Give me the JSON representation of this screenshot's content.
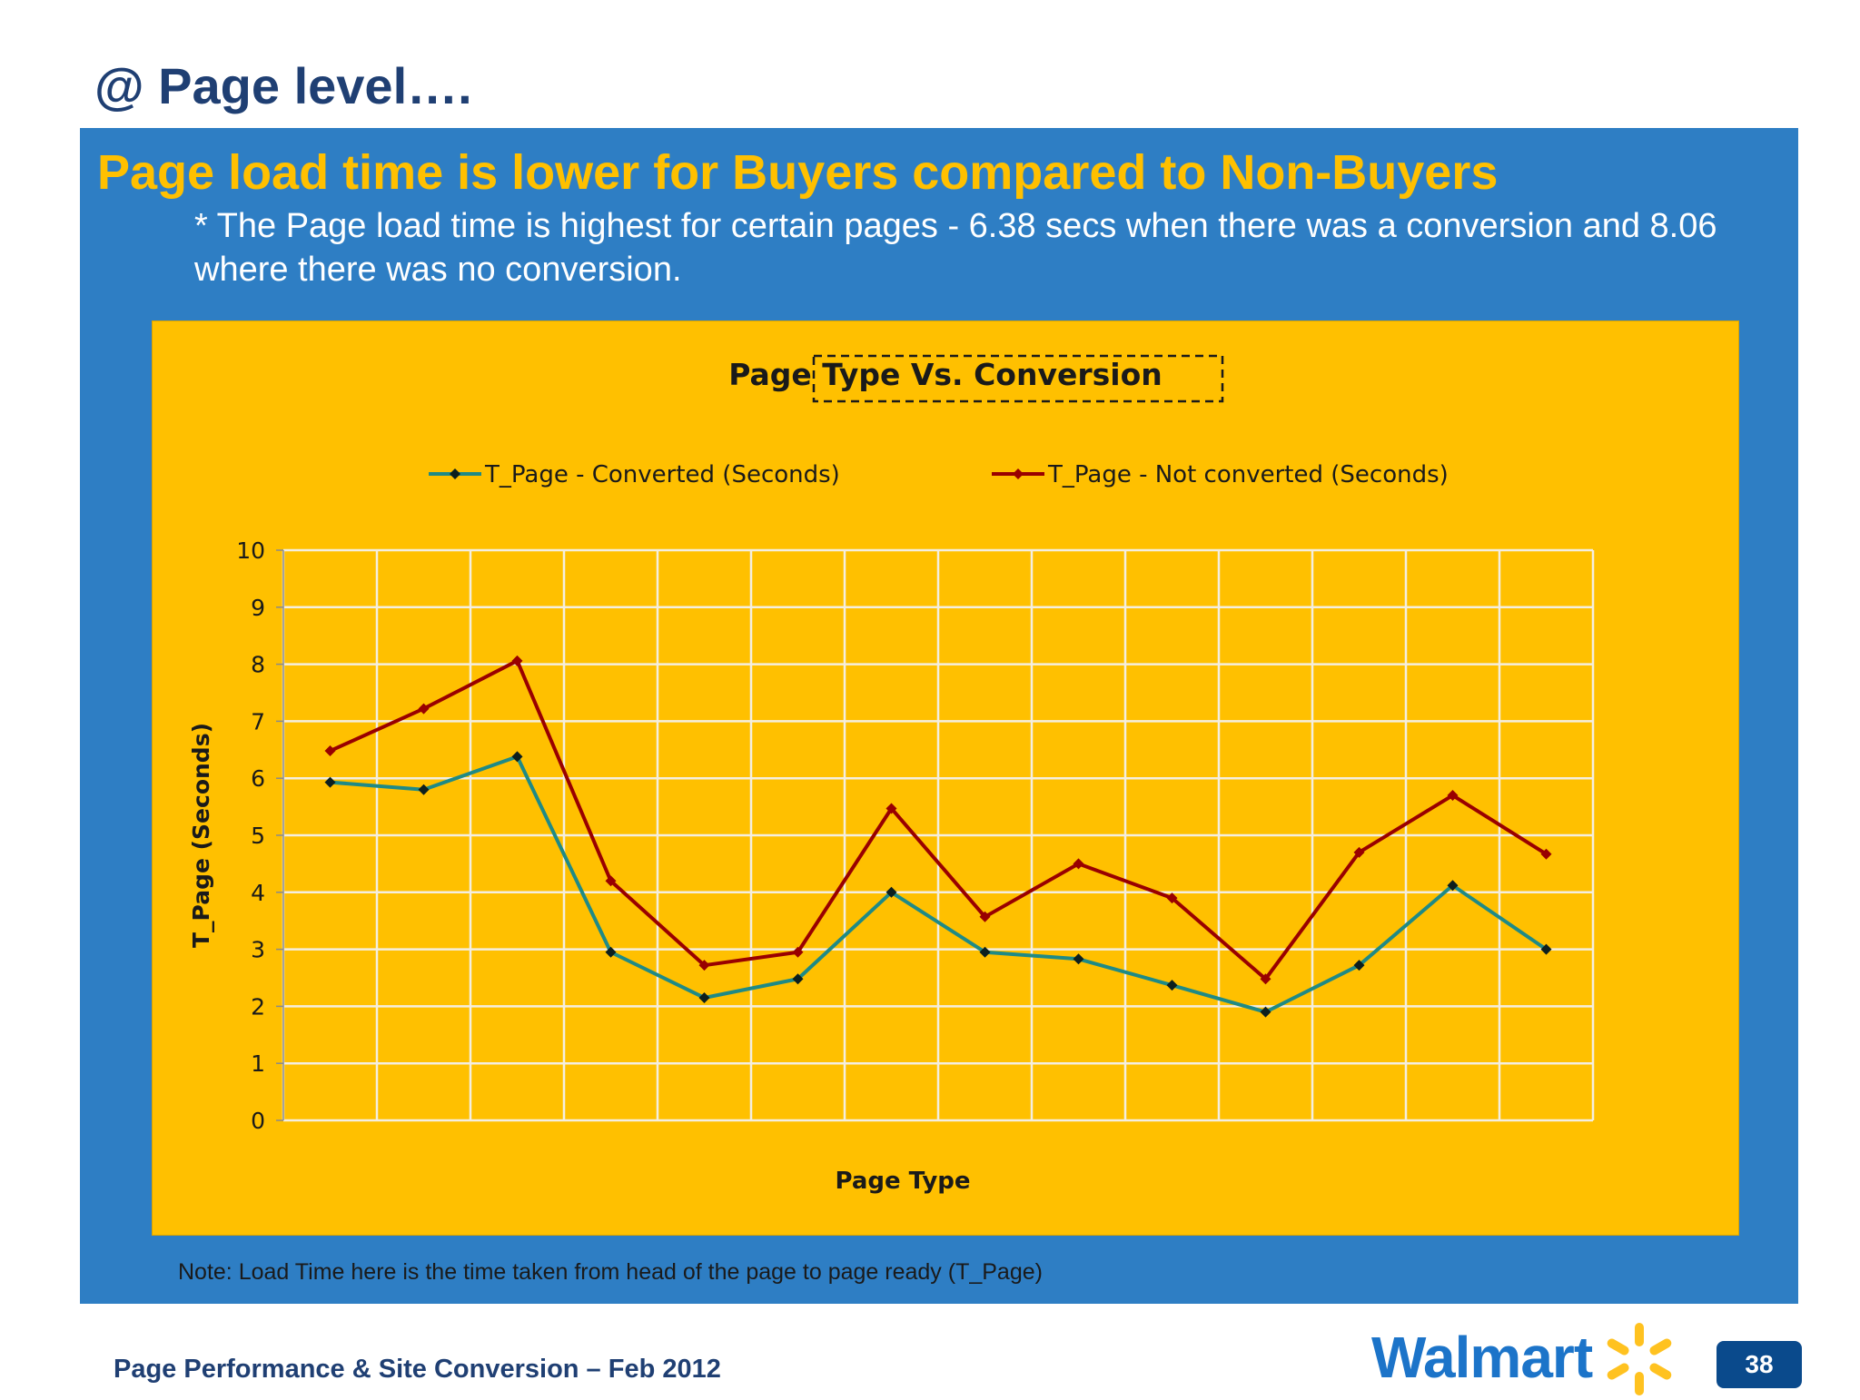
{
  "slide": {
    "title": "@ Page level….",
    "headline": "Page load time is lower for Buyers compared to Non-Buyers",
    "subtext": "* The Page load time is highest for certain pages -  6.38 secs when there was a conversion and 8.06 where there was no conversion.",
    "note": "Note: Load Time here is the time taken from head of the page to page ready (T_Page)",
    "footer": "Page Performance & Site Conversion – Feb 2012",
    "page_number": "38",
    "logo_text": "Walmart"
  },
  "colors": {
    "panel": "#2e7ec4",
    "chart_bg": "#ffc000",
    "headline": "#ffc000",
    "converted": "#1f8a86",
    "not_converted": "#990000"
  },
  "chart_data": {
    "type": "line",
    "title": "Page Type Vs. Conversion",
    "xlabel": "Page Type",
    "ylabel": "T_Page (Seconds)",
    "ylim": [
      0,
      10
    ],
    "yticks": [
      0,
      1,
      2,
      3,
      4,
      5,
      6,
      7,
      8,
      9,
      10
    ],
    "grid": true,
    "legend_position": "top",
    "series": [
      {
        "name": "T_Page - Converted (Seconds)",
        "color": "#1f8a86",
        "values": [
          5.93,
          5.8,
          6.38,
          2.95,
          2.15,
          2.48,
          4.0,
          2.95,
          2.83,
          2.37,
          1.9,
          2.72,
          4.12,
          3.0
        ]
      },
      {
        "name": "T_Page - Not converted (Seconds)",
        "color": "#990000",
        "values": [
          6.48,
          7.22,
          8.06,
          4.2,
          2.72,
          2.95,
          5.47,
          3.57,
          4.5,
          3.9,
          2.48,
          4.7,
          5.7,
          4.67
        ]
      }
    ]
  }
}
